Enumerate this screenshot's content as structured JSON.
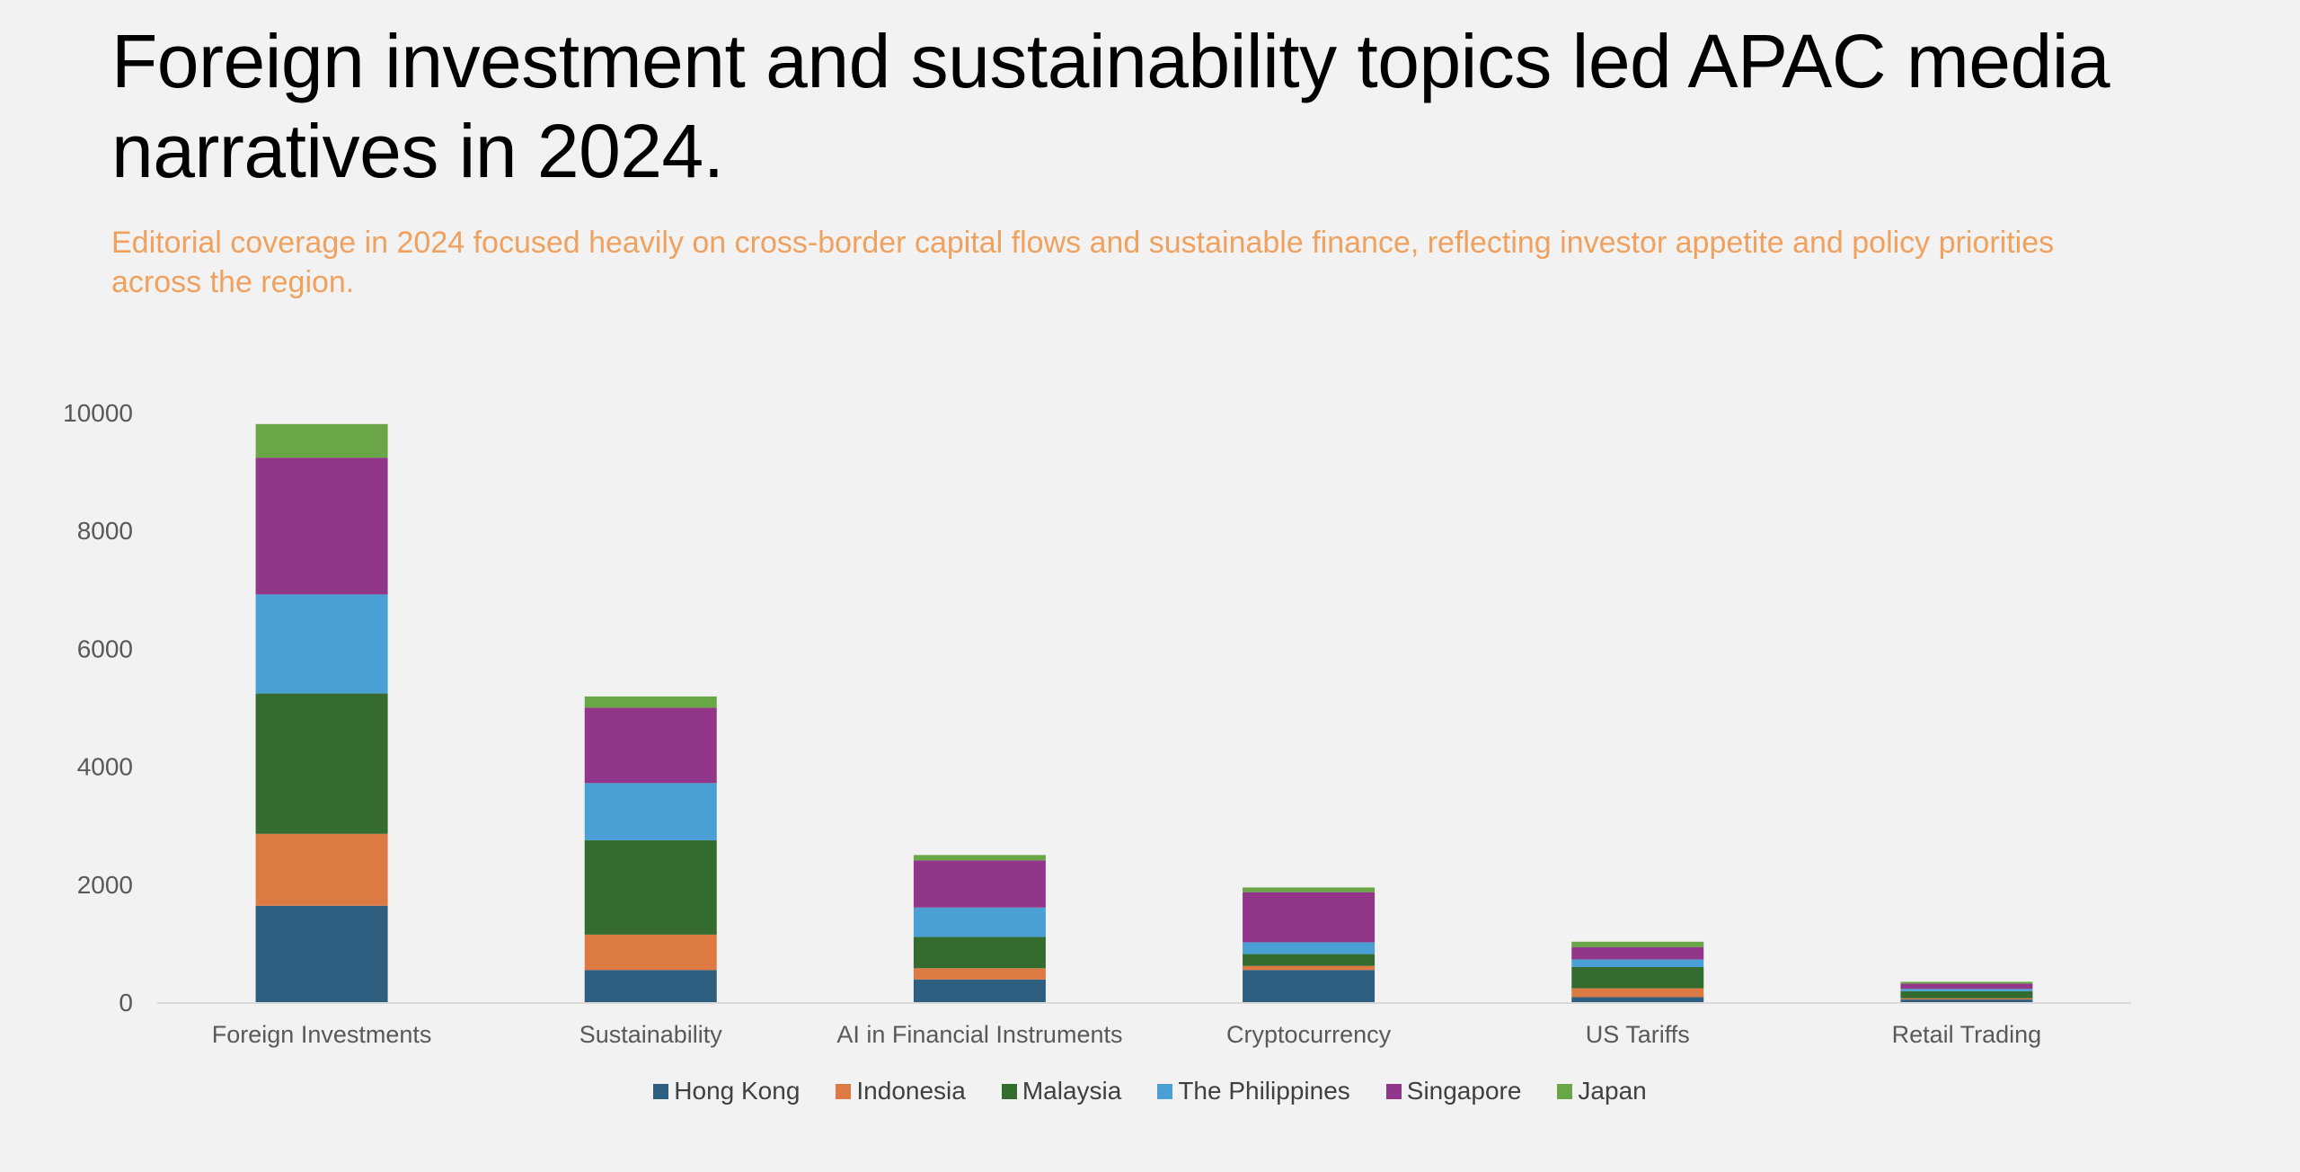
{
  "header": {
    "title": "Foreign investment and sustainability topics led APAC media narratives in 2024.",
    "subtitle": "Editorial coverage in 2024 focused heavily on cross-border capital flows and sustainable finance, reflecting investor appetite and policy priorities across the region.",
    "subtitle_color": "#f0a15e"
  },
  "chart_data": {
    "type": "bar",
    "stacked": true,
    "title": "",
    "xlabel": "",
    "ylabel": "",
    "ylim": [
      0,
      10000
    ],
    "yticks": [
      "0",
      "2000",
      "4000",
      "6000",
      "8000",
      "10000"
    ],
    "grid": false,
    "legend_position": "bottom",
    "categories": [
      "Foreign Investments",
      "Sustainability",
      "AI in Financial Instruments",
      "Cryptocurrency",
      "US Tariffs",
      "Retail Trading"
    ],
    "series": [
      {
        "name": "Hong Kong",
        "color": "#2e5f80",
        "values": [
          1650,
          560,
          400,
          560,
          100,
          60
        ]
      },
      {
        "name": "Indonesia",
        "color": "#dd7a43",
        "values": [
          1220,
          600,
          190,
          70,
          150,
          20
        ]
      },
      {
        "name": "Malaysia",
        "color": "#346b2e",
        "values": [
          2380,
          1600,
          530,
          200,
          360,
          120
        ]
      },
      {
        "name": "The Philippines",
        "color": "#4a9fd4",
        "values": [
          1680,
          970,
          500,
          200,
          130,
          40
        ]
      },
      {
        "name": "Singapore",
        "color": "#923689",
        "values": [
          2320,
          1280,
          800,
          850,
          210,
          90
        ]
      },
      {
        "name": "Japan",
        "color": "#69a646",
        "values": [
          570,
          190,
          90,
          80,
          90,
          30
        ]
      }
    ]
  }
}
